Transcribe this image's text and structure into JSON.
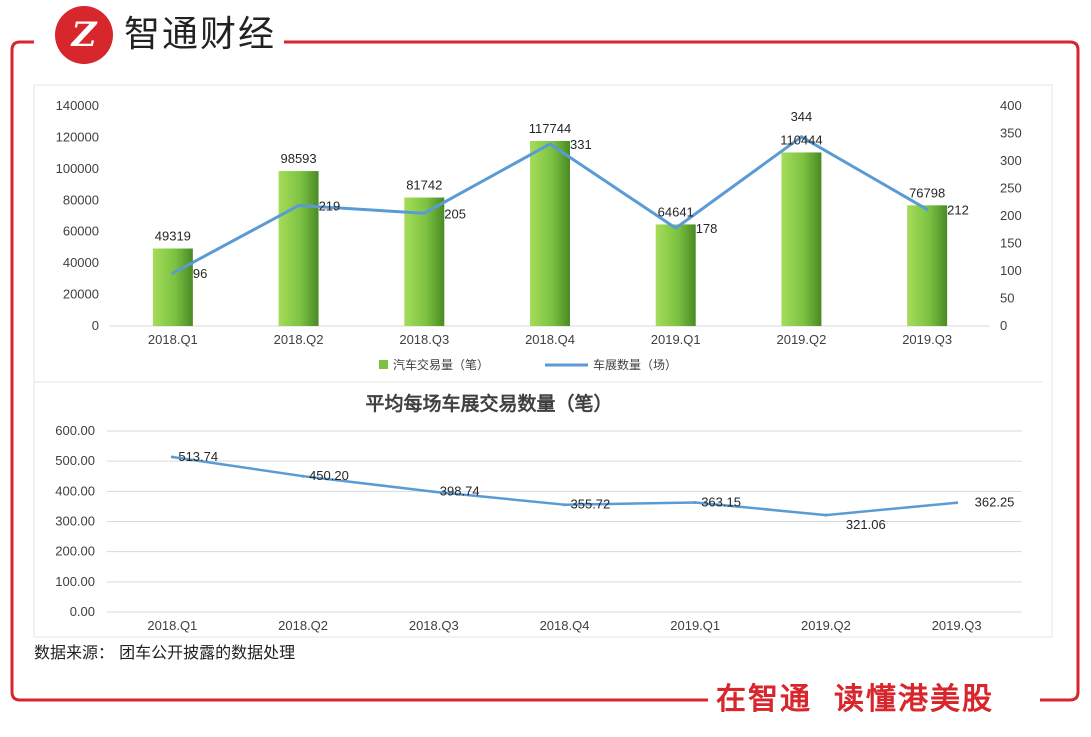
{
  "brand": {
    "logo_mark": "Z",
    "name": "智通财经"
  },
  "slogan": {
    "part1": "在智通",
    "part2": "读懂港美股"
  },
  "source_note": "数据来源： 团车公开披露的数据处理",
  "colors": {
    "frame": "#d7262c",
    "bar": "#7cc242",
    "line": "#5b9bd5",
    "grid": "#d9d9d9",
    "text": "#404040"
  },
  "chart_data": [
    {
      "type": "bar",
      "title": "",
      "categories": [
        "2018.Q1",
        "2018.Q2",
        "2018.Q3",
        "2018.Q4",
        "2019.Q1",
        "2019.Q2",
        "2019.Q3"
      ],
      "series": [
        {
          "name": "汽车交易量（笔）",
          "type": "bar",
          "axis": "left",
          "values": [
            49319,
            98593,
            81742,
            117744,
            64641,
            110444,
            76798
          ],
          "labels": [
            "49319",
            "98593",
            "81742",
            "117744",
            "64641",
            "110444",
            "76798"
          ]
        },
        {
          "name": "车展数量（场）",
          "type": "line",
          "axis": "right",
          "values": [
            96,
            219,
            205,
            331,
            178,
            344,
            212
          ],
          "labels": [
            "96",
            "219",
            "205",
            "331",
            "178",
            "344",
            "212"
          ]
        }
      ],
      "ylim": [
        0,
        140000
      ],
      "yticks": [
        "0",
        "20000",
        "40000",
        "60000",
        "80000",
        "100000",
        "120000",
        "140000"
      ],
      "y2lim": [
        0,
        400
      ],
      "y2ticks": [
        "0",
        "50",
        "100",
        "150",
        "200",
        "250",
        "300",
        "350",
        "400"
      ],
      "grid": false,
      "legend": "bottom"
    },
    {
      "type": "line",
      "title": "平均每场车展交易数量（笔）",
      "categories": [
        "2018.Q1",
        "2018.Q2",
        "2018.Q3",
        "2018.Q4",
        "2019.Q1",
        "2019.Q2",
        "2019.Q3"
      ],
      "series": [
        {
          "values": [
            513.74,
            450.2,
            398.74,
            355.72,
            363.15,
            321.06,
            362.25
          ],
          "labels": [
            "513.74",
            "450.20",
            "398.74",
            "355.72",
            "363.15",
            "321.06",
            "362.25"
          ]
        }
      ],
      "ylim": [
        0,
        600
      ],
      "yticks": [
        "0.00",
        "100.00",
        "200.00",
        "300.00",
        "400.00",
        "500.00",
        "600.00"
      ],
      "grid": true,
      "legend": "none"
    }
  ]
}
